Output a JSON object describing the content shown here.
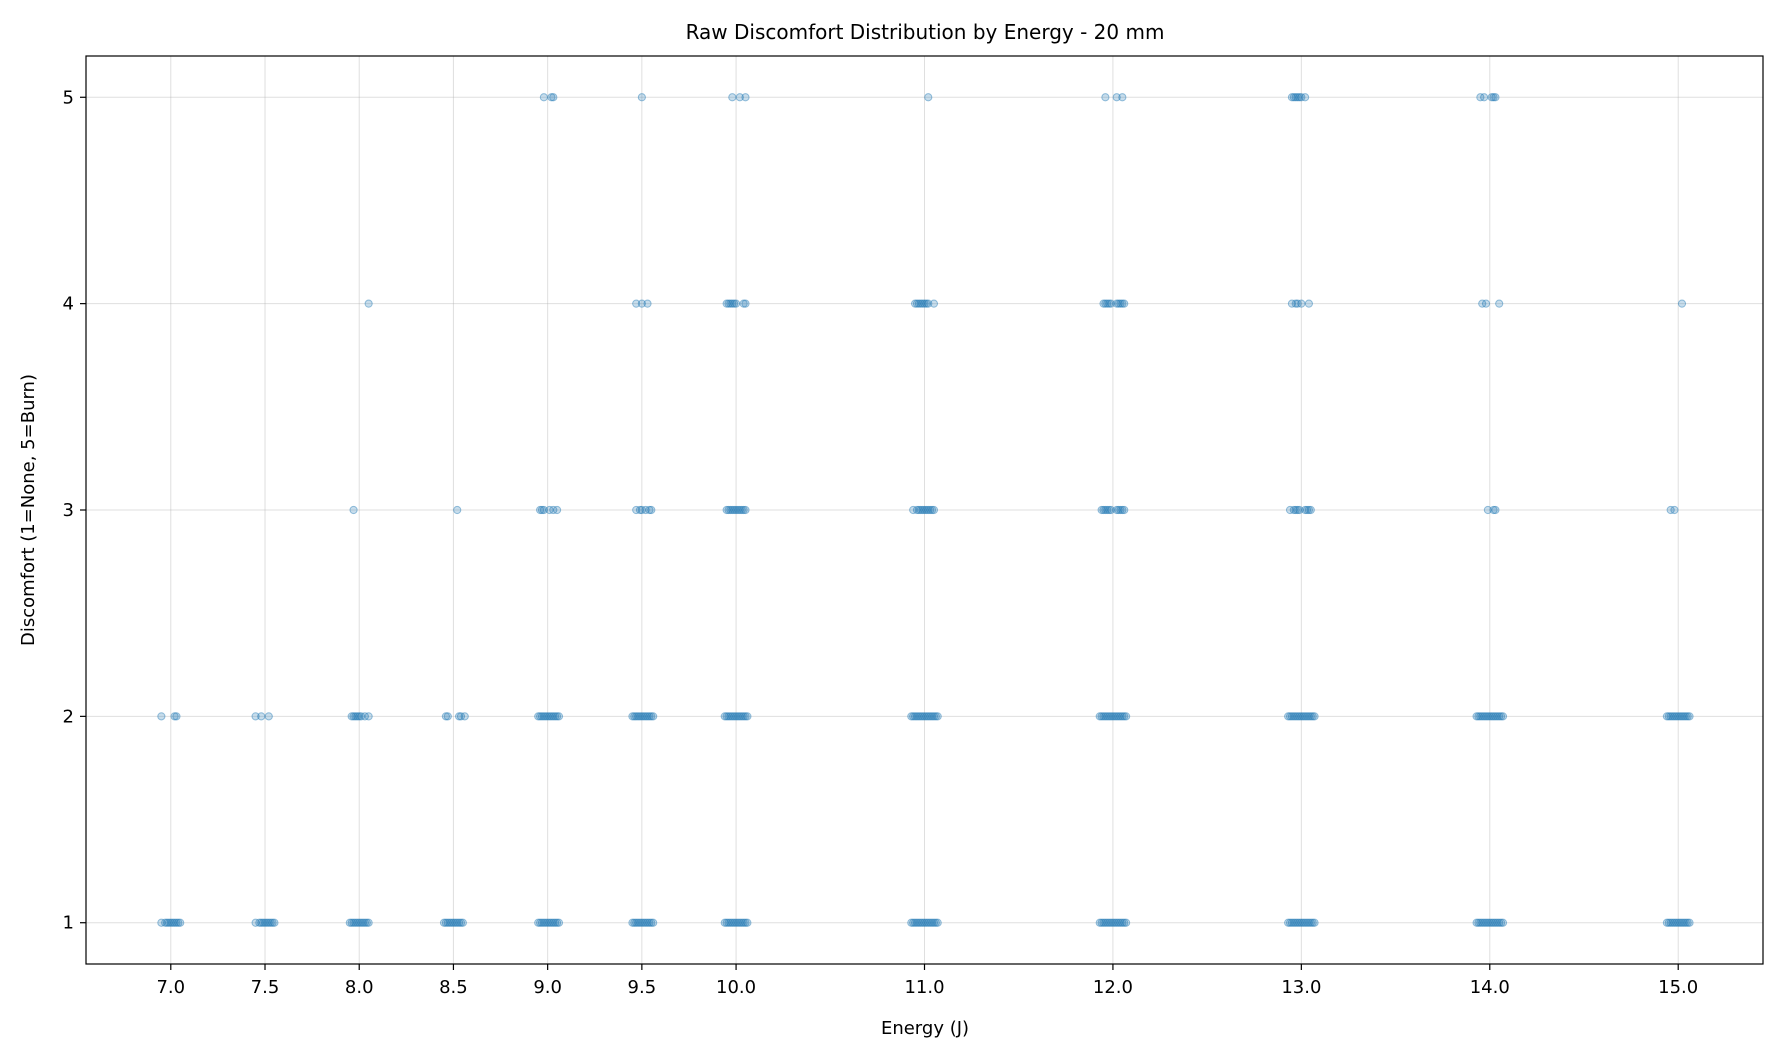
{
  "chart_data": {
    "type": "scatter",
    "title": "Raw Discomfort Distribution by Energy - 20 mm",
    "xlabel": "Energy (J)",
    "ylabel": "Discomfort (1=None, 5=Burn)",
    "xlim": [
      6.55,
      15.45
    ],
    "ylim": [
      0.8,
      5.2
    ],
    "grid": true,
    "color": "#1f77b4",
    "x_ticks": [
      "7.0",
      "7.5",
      "8.0",
      "8.5",
      "9.0",
      "9.5",
      "10.0",
      "11.0",
      "12.0",
      "13.0",
      "14.0",
      "15.0"
    ],
    "y_ticks": [
      "1",
      "2",
      "3",
      "4",
      "5"
    ],
    "groups": [
      {
        "energy": 7.0,
        "points": {
          "1": [
            -0.05,
            -0.03,
            -0.02,
            -0.01,
            0.0,
            0.01,
            0.02,
            0.03,
            0.04,
            0.05
          ],
          "2": [
            -0.05,
            0.02,
            0.03
          ]
        }
      },
      {
        "energy": 7.5,
        "points": {
          "1": [
            -0.05,
            -0.03,
            -0.02,
            -0.01,
            0.0,
            0.01,
            0.02,
            0.03,
            0.04,
            0.05
          ],
          "2": [
            -0.05,
            -0.02,
            0.02
          ]
        }
      },
      {
        "energy": 8.0,
        "points": {
          "1": [
            -0.05,
            -0.04,
            -0.03,
            -0.02,
            -0.01,
            0.0,
            0.01,
            0.02,
            0.03,
            0.04,
            0.05
          ],
          "2": [
            -0.04,
            -0.03,
            -0.02,
            -0.01,
            0.0,
            0.01,
            0.03,
            0.05
          ],
          "3": [
            -0.03
          ],
          "4": [
            0.05
          ]
        }
      },
      {
        "energy": 8.5,
        "points": {
          "1": [
            -0.05,
            -0.04,
            -0.03,
            -0.02,
            -0.01,
            0.0,
            0.01,
            0.02,
            0.03,
            0.04,
            0.05
          ],
          "2": [
            -0.04,
            -0.03,
            0.03,
            0.04,
            0.06
          ],
          "3": [
            0.02
          ]
        }
      },
      {
        "energy": 9.0,
        "points": {
          "1": [
            -0.05,
            -0.04,
            -0.03,
            -0.02,
            -0.01,
            0.0,
            0.01,
            0.02,
            0.03,
            0.04,
            0.05,
            0.06
          ],
          "2": [
            -0.05,
            -0.04,
            -0.03,
            -0.02,
            -0.01,
            0.0,
            0.01,
            0.02,
            0.03,
            0.04,
            0.05,
            0.06
          ],
          "3": [
            -0.04,
            -0.03,
            -0.02,
            0.01,
            0.03,
            0.05
          ],
          "5": [
            -0.02,
            0.02,
            0.03
          ]
        }
      },
      {
        "energy": 9.5,
        "points": {
          "1": [
            -0.05,
            -0.04,
            -0.03,
            -0.02,
            -0.01,
            0.0,
            0.01,
            0.02,
            0.03,
            0.04,
            0.05,
            0.06
          ],
          "2": [
            -0.05,
            -0.04,
            -0.03,
            -0.02,
            -0.01,
            0.0,
            0.01,
            0.02,
            0.03,
            0.04,
            0.05,
            0.06
          ],
          "3": [
            -0.03,
            -0.01,
            0.0,
            0.02,
            0.04,
            0.05
          ],
          "4": [
            -0.03,
            0.0,
            0.03
          ],
          "5": [
            0.0
          ]
        }
      },
      {
        "energy": 10.0,
        "points": {
          "1": [
            -0.06,
            -0.05,
            -0.04,
            -0.03,
            -0.02,
            -0.01,
            0.0,
            0.01,
            0.02,
            0.03,
            0.04,
            0.05,
            0.06
          ],
          "2": [
            -0.06,
            -0.05,
            -0.04,
            -0.03,
            -0.02,
            -0.01,
            0.0,
            0.01,
            0.02,
            0.03,
            0.04,
            0.05,
            0.06
          ],
          "3": [
            -0.05,
            -0.04,
            -0.03,
            -0.02,
            -0.01,
            0.0,
            0.01,
            0.02,
            0.03,
            0.04,
            0.05
          ],
          "4": [
            -0.05,
            -0.04,
            -0.03,
            -0.02,
            -0.01,
            0.0,
            0.04,
            0.05
          ],
          "5": [
            -0.02,
            0.02,
            0.05
          ]
        }
      },
      {
        "energy": 11.0,
        "points": {
          "1": [
            -0.07,
            -0.06,
            -0.05,
            -0.04,
            -0.03,
            -0.02,
            -0.01,
            0.0,
            0.01,
            0.02,
            0.03,
            0.04,
            0.05,
            0.06,
            0.07
          ],
          "2": [
            -0.07,
            -0.06,
            -0.05,
            -0.04,
            -0.03,
            -0.02,
            -0.01,
            0.0,
            0.01,
            0.02,
            0.03,
            0.04,
            0.05,
            0.06,
            0.07
          ],
          "3": [
            -0.06,
            -0.04,
            -0.03,
            -0.02,
            -0.01,
            0.0,
            0.01,
            0.02,
            0.03,
            0.04,
            0.05
          ],
          "4": [
            -0.05,
            -0.04,
            -0.03,
            -0.02,
            -0.01,
            0.0,
            0.01,
            0.02,
            0.05
          ],
          "5": [
            0.02
          ]
        }
      },
      {
        "energy": 12.0,
        "points": {
          "1": [
            -0.07,
            -0.06,
            -0.05,
            -0.04,
            -0.03,
            -0.02,
            -0.01,
            0.0,
            0.01,
            0.02,
            0.03,
            0.04,
            0.05,
            0.06,
            0.07
          ],
          "2": [
            -0.07,
            -0.06,
            -0.05,
            -0.04,
            -0.03,
            -0.02,
            -0.01,
            0.0,
            0.01,
            0.02,
            0.03,
            0.04,
            0.05,
            0.06,
            0.07
          ],
          "3": [
            -0.06,
            -0.05,
            -0.04,
            -0.03,
            -0.02,
            -0.01,
            0.02,
            0.03,
            0.04,
            0.05,
            0.06
          ],
          "4": [
            -0.05,
            -0.04,
            -0.03,
            -0.02,
            -0.01,
            0.02,
            0.03,
            0.04,
            0.05,
            0.06
          ],
          "5": [
            -0.04,
            0.02,
            0.05
          ]
        }
      },
      {
        "energy": 13.0,
        "points": {
          "1": [
            -0.07,
            -0.06,
            -0.05,
            -0.04,
            -0.03,
            -0.02,
            -0.01,
            0.0,
            0.01,
            0.02,
            0.03,
            0.04,
            0.05,
            0.06,
            0.07
          ],
          "2": [
            -0.07,
            -0.06,
            -0.05,
            -0.04,
            -0.03,
            -0.02,
            -0.01,
            0.0,
            0.01,
            0.02,
            0.03,
            0.04,
            0.05,
            0.06,
            0.07
          ],
          "3": [
            -0.06,
            -0.04,
            -0.03,
            -0.02,
            -0.01,
            0.02,
            0.03,
            0.04,
            0.05
          ],
          "4": [
            -0.05,
            -0.03,
            -0.02,
            0.0,
            0.04
          ],
          "5": [
            -0.05,
            -0.04,
            -0.03,
            -0.02,
            -0.01,
            0.0,
            0.02
          ]
        }
      },
      {
        "energy": 14.0,
        "points": {
          "1": [
            -0.07,
            -0.06,
            -0.05,
            -0.04,
            -0.03,
            -0.02,
            -0.01,
            0.0,
            0.01,
            0.02,
            0.03,
            0.04,
            0.05,
            0.06,
            0.07
          ],
          "2": [
            -0.07,
            -0.06,
            -0.05,
            -0.04,
            -0.03,
            -0.02,
            -0.01,
            0.0,
            0.01,
            0.02,
            0.03,
            0.04,
            0.05,
            0.06,
            0.07
          ],
          "3": [
            -0.01,
            0.02,
            0.03
          ],
          "4": [
            -0.04,
            -0.02,
            0.05
          ],
          "5": [
            -0.05,
            -0.03,
            0.01,
            0.02,
            0.03
          ]
        }
      },
      {
        "energy": 15.0,
        "points": {
          "1": [
            -0.06,
            -0.05,
            -0.04,
            -0.03,
            -0.02,
            -0.01,
            0.0,
            0.01,
            0.02,
            0.03,
            0.04,
            0.05,
            0.06
          ],
          "2": [
            -0.06,
            -0.05,
            -0.04,
            -0.03,
            -0.02,
            -0.01,
            0.0,
            0.01,
            0.02,
            0.03,
            0.04,
            0.05,
            0.06
          ],
          "3": [
            -0.04,
            -0.02
          ],
          "4": [
            0.02
          ]
        }
      }
    ]
  }
}
